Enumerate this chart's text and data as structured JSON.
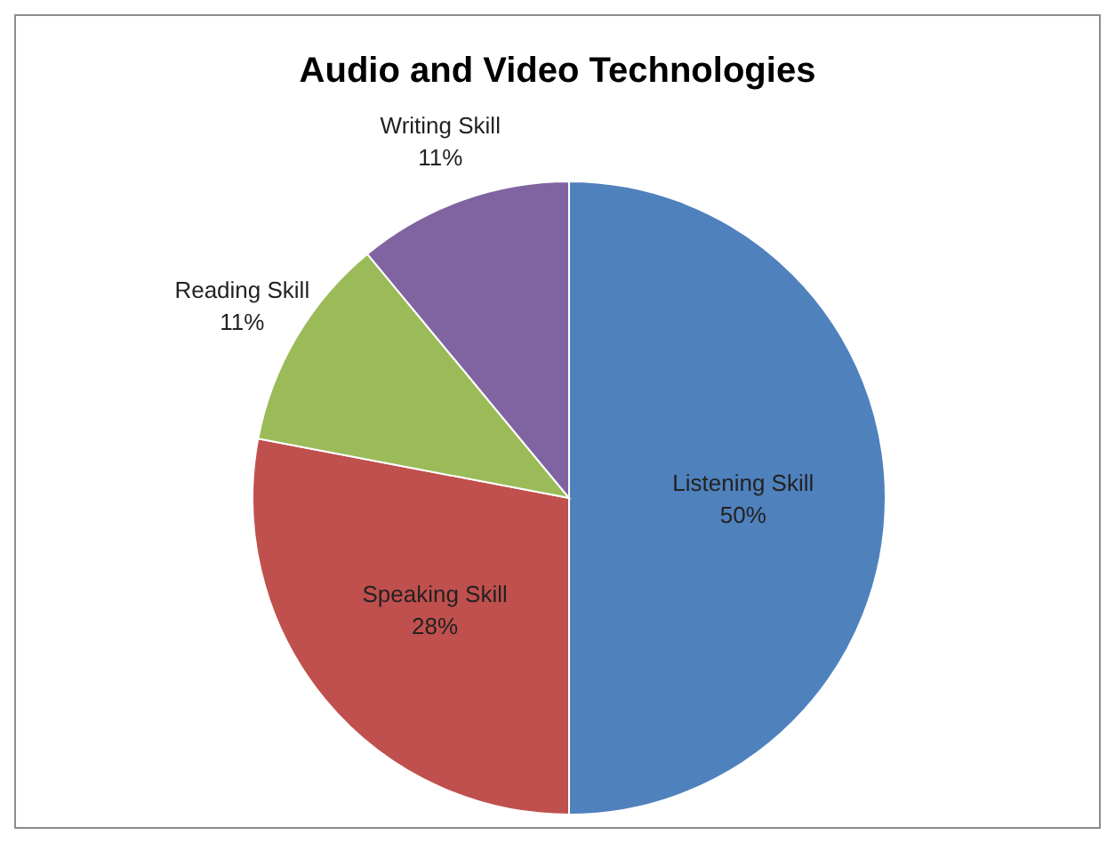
{
  "chart_data": {
    "type": "pie",
    "title": "Audio and Video Technologies",
    "categories": [
      "Listening Skill",
      "Speaking Skill",
      "Reading Skill",
      "Writing Skill"
    ],
    "values": [
      50,
      28,
      11,
      11
    ],
    "colors": [
      "#4f81bd",
      "#c0504d",
      "#9bbb59",
      "#8064a2"
    ],
    "value_labels": [
      "50%",
      "28%",
      "11%",
      "11%"
    ]
  }
}
